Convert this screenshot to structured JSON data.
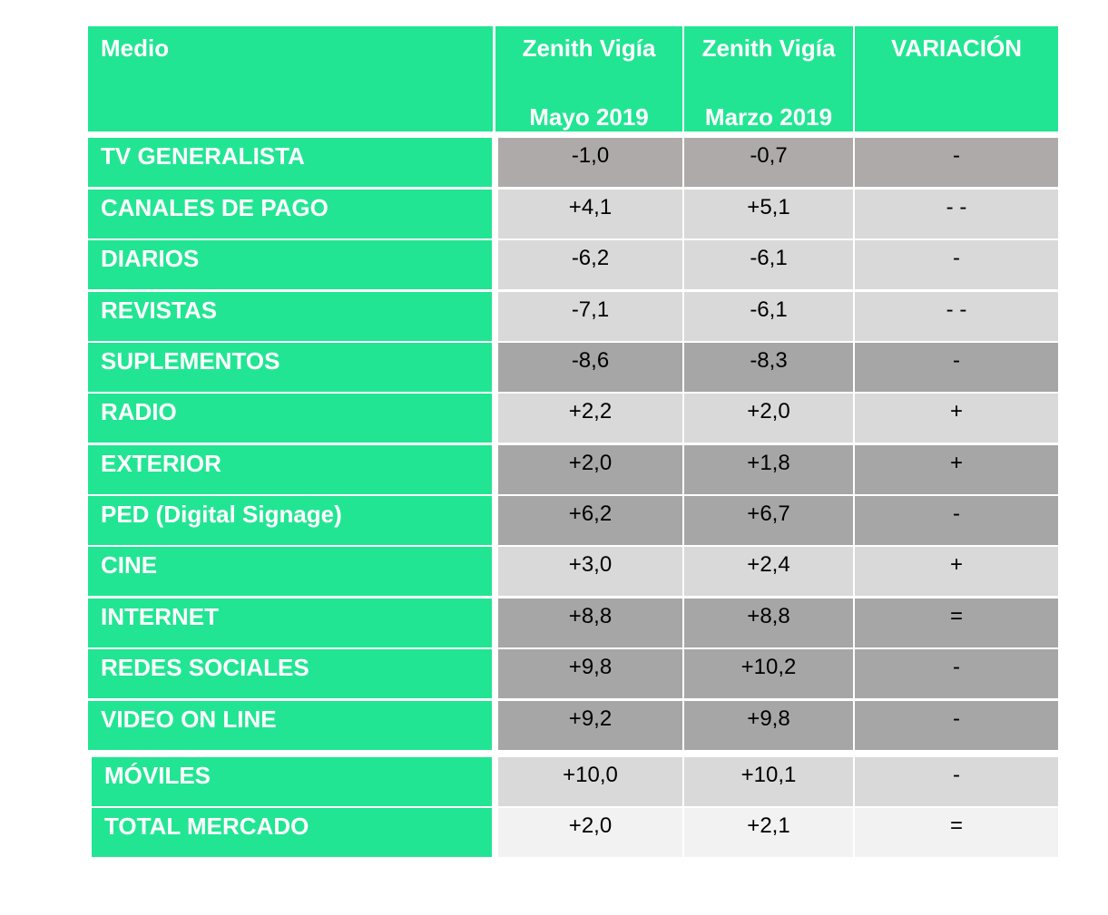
{
  "chart_data": {
    "type": "table",
    "columns": [
      {
        "line1": "Medio",
        "line2": ""
      },
      {
        "line1": "Zenith Vigía",
        "line2": "Mayo 2019"
      },
      {
        "line1": "Zenith Vigía",
        "line2": "Marzo 2019"
      },
      {
        "line1": "VARIACIÓN",
        "line2": ""
      }
    ],
    "rows": [
      {
        "medio": "TV GENERALISTA",
        "mayo": "-1,0",
        "marzo": "-0,7",
        "variacion": "-",
        "shade": "#aeaaaa"
      },
      {
        "medio": "CANALES DE PAGO",
        "mayo": "+4,1",
        "marzo": "+5,1",
        "variacion": "- -",
        "shade": "#d9d9d9"
      },
      {
        "medio": "DIARIOS",
        "mayo": "-6,2",
        "marzo": "-6,1",
        "variacion": "-",
        "shade": "#d9d9d9"
      },
      {
        "medio": "REVISTAS",
        "mayo": "-7,1",
        "marzo": "-6,1",
        "variacion": "- -",
        "shade": "#d9d9d9"
      },
      {
        "medio": "SUPLEMENTOS",
        "mayo": "-8,6",
        "marzo": "-8,3",
        "variacion": "-",
        "shade": "#a6a6a6"
      },
      {
        "medio": "RADIO",
        "mayo": "+2,2",
        "marzo": "+2,0",
        "variacion": "+",
        "shade": "#d9d9d9"
      },
      {
        "medio": "EXTERIOR",
        "mayo": "+2,0",
        "marzo": "+1,8",
        "variacion": "+",
        "shade": "#a6a6a6"
      },
      {
        "medio": "PED (Digital Signage)",
        "mayo": "+6,2",
        "marzo": "+6,7",
        "variacion": "-",
        "shade": "#a6a6a6"
      },
      {
        "medio": "CINE",
        "mayo": "+3,0",
        "marzo": "+2,4",
        "variacion": "+",
        "shade": "#d9d9d9"
      },
      {
        "medio": "INTERNET",
        "mayo": "+8,8",
        "marzo": "+8,8",
        "variacion": "=",
        "shade": "#a6a6a6"
      },
      {
        "medio": "REDES SOCIALES",
        "mayo": "+9,8",
        "marzo": "+10,2",
        "variacion": "-",
        "shade": "#a6a6a6"
      },
      {
        "medio": "VIDEO ON LINE",
        "mayo": "+9,2",
        "marzo": "+9,8",
        "variacion": "-",
        "shade": "#a6a6a6"
      },
      {
        "medio": "MÓVILES",
        "mayo": "+10,0",
        "marzo": "+10,1",
        "variacion": "-",
        "shade": "#d9d9d9"
      },
      {
        "medio": "TOTAL MERCADO",
        "mayo": "+2,0",
        "marzo": "+2,1",
        "variacion": "=",
        "shade": "#f2f2f2"
      }
    ]
  },
  "colors": {
    "header": "#22e593",
    "label": "#22e593"
  }
}
